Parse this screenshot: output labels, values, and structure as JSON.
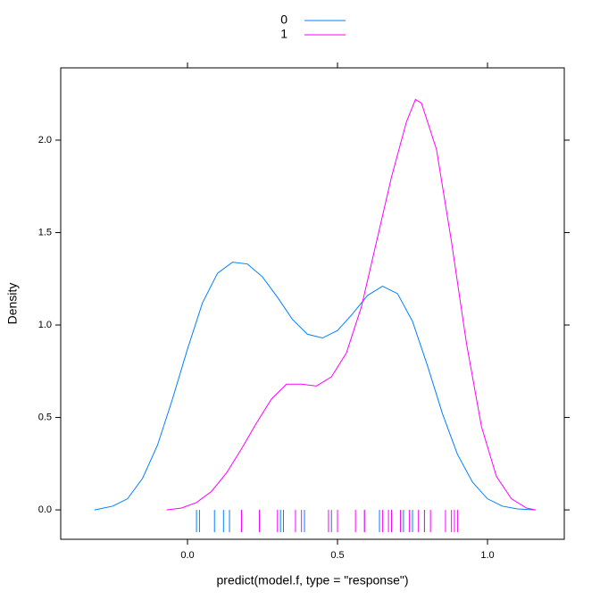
{
  "chart_data": {
    "type": "density",
    "xlabel": "predict(model.f, type = \"response\")",
    "ylabel": "Density",
    "xlim": [
      -0.4226,
      1.256
    ],
    "ylim": [
      -0.159,
      2.391
    ],
    "xticks": [
      {
        "value": 0,
        "label": "0.0"
      },
      {
        "value": 0.5,
        "label": "0.5"
      },
      {
        "value": 1,
        "label": "1.0"
      }
    ],
    "yticks": [
      {
        "value": 0,
        "label": "0.0"
      },
      {
        "value": 0.5,
        "label": "0.5"
      },
      {
        "value": 1,
        "label": "1.0"
      },
      {
        "value": 1.5,
        "label": "1.5"
      },
      {
        "value": 2,
        "label": "2.0"
      }
    ],
    "series": [
      {
        "name": "0",
        "color": "#0080ff",
        "x": [
          -0.31,
          -0.25,
          -0.2,
          -0.15,
          -0.1,
          -0.05,
          0.0,
          0.05,
          0.1,
          0.15,
          0.2,
          0.25,
          0.3,
          0.35,
          0.4,
          0.45,
          0.5,
          0.55,
          0.6,
          0.65,
          0.7,
          0.75,
          0.8,
          0.85,
          0.9,
          0.95,
          1.0,
          1.05,
          1.1,
          1.16
        ],
        "values": [
          0,
          0.02,
          0.06,
          0.17,
          0.35,
          0.6,
          0.87,
          1.12,
          1.28,
          1.34,
          1.33,
          1.26,
          1.15,
          1.03,
          0.95,
          0.93,
          0.97,
          1.06,
          1.16,
          1.21,
          1.17,
          1.02,
          0.78,
          0.52,
          0.3,
          0.15,
          0.06,
          0.02,
          0.005,
          0
        ],
        "rug": [
          0.03,
          0.04,
          0.09,
          0.12,
          0.14,
          0.18,
          0.24,
          0.31,
          0.39,
          0.48,
          0.5,
          0.59,
          0.64,
          0.68,
          0.72,
          0.75,
          0.79
        ]
      },
      {
        "name": "1",
        "color": "#ff00ff",
        "x": [
          -0.07,
          -0.02,
          0.03,
          0.08,
          0.13,
          0.18,
          0.23,
          0.28,
          0.33,
          0.38,
          0.43,
          0.48,
          0.53,
          0.58,
          0.63,
          0.68,
          0.73,
          0.76,
          0.78,
          0.83,
          0.88,
          0.93,
          0.98,
          1.03,
          1.08,
          1.13,
          1.16
        ],
        "values": [
          0,
          0.01,
          0.04,
          0.1,
          0.2,
          0.33,
          0.47,
          0.6,
          0.68,
          0.68,
          0.67,
          0.72,
          0.85,
          1.1,
          1.45,
          1.8,
          2.1,
          2.22,
          2.2,
          1.95,
          1.45,
          0.9,
          0.45,
          0.18,
          0.06,
          0.01,
          0
        ],
        "rug": [
          0.18,
          0.24,
          0.3,
          0.32,
          0.36,
          0.38,
          0.47,
          0.5,
          0.56,
          0.59,
          0.65,
          0.67,
          0.68,
          0.71,
          0.74,
          0.77,
          0.79,
          0.81,
          0.86,
          0.88,
          0.89,
          0.9
        ]
      }
    ]
  }
}
